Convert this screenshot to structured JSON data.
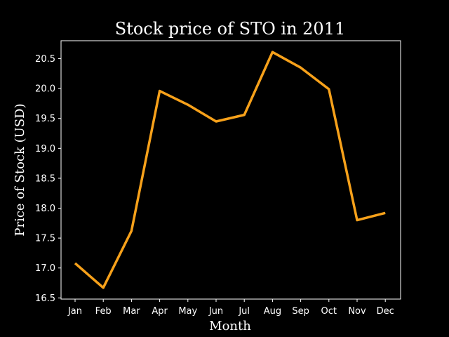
{
  "chart_data": {
    "type": "line",
    "title": "Stock price of STO in 2011",
    "xlabel": "Month",
    "ylabel": "Price of Stock (USD)",
    "categories": [
      "Jan",
      "Feb",
      "Mar",
      "Apr",
      "May",
      "Jun",
      "Jul",
      "Aug",
      "Sep",
      "Oct",
      "Nov",
      "Dec"
    ],
    "series": [
      {
        "values": [
          17.08,
          16.67,
          17.62,
          19.96,
          19.73,
          19.45,
          19.56,
          20.61,
          20.35,
          19.99,
          17.8,
          17.92
        ],
        "color": "#f7a11a"
      }
    ],
    "ylim": [
      16.48,
      20.8
    ],
    "yticks": [
      16.5,
      17.0,
      17.5,
      18.0,
      18.5,
      19.0,
      19.5,
      20.0,
      20.5
    ],
    "ytick_labels": [
      "16.5",
      "17.0",
      "17.5",
      "18.0",
      "18.5",
      "19.0",
      "19.5",
      "20.0",
      "20.5"
    ],
    "grid": false,
    "background": "#000000",
    "axes_color": "#ffffff"
  }
}
